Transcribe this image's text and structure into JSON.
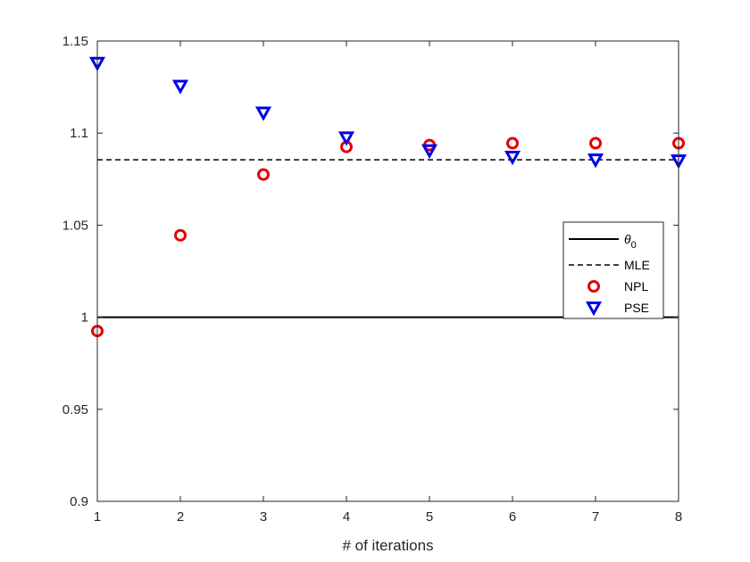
{
  "chart_data": {
    "type": "scatter",
    "title": "",
    "xlabel": "# of iterations",
    "ylabel": "",
    "xlim": [
      1,
      8
    ],
    "ylim": [
      0.9,
      1.15
    ],
    "x_ticks": [
      "1",
      "2",
      "3",
      "4",
      "5",
      "6",
      "7",
      "8"
    ],
    "y_ticks": [
      "0.9",
      "0.95",
      "1",
      "1.05",
      "1.1",
      "1.15"
    ],
    "x": [
      1,
      2,
      3,
      4,
      5,
      6,
      7,
      8
    ],
    "grid": false,
    "legend_position": "right",
    "reference_lines": [
      {
        "name": "θ",
        "subscript": "0",
        "value": 1.0,
        "style": "solid",
        "color": "#000000"
      },
      {
        "name": "MLE",
        "value": 1.0855,
        "style": "dashed",
        "color": "#000000"
      }
    ],
    "series": [
      {
        "name": "NPL",
        "marker": "circle",
        "color": "#e50000",
        "values": [
          0.9925,
          1.0445,
          1.0775,
          1.0925,
          1.0935,
          1.0945,
          1.0945,
          1.0945
        ]
      },
      {
        "name": "PSE",
        "marker": "triangle-down",
        "color": "#0000e6",
        "values": [
          1.138,
          1.1255,
          1.111,
          1.0975,
          1.0905,
          1.087,
          1.0855,
          1.085
        ]
      }
    ]
  }
}
